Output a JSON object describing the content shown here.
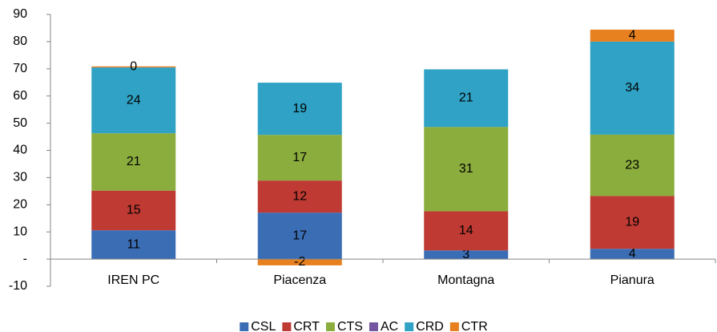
{
  "chart_data": {
    "type": "stacked_bar",
    "categories": [
      "IREN PC",
      "Piacenza",
      "Montagna",
      "Pianura"
    ],
    "series": [
      {
        "name": "CSL",
        "color": "#3b6db5",
        "values": [
          10.6,
          17.1,
          3.2,
          3.8
        ],
        "value_labels": [
          "11",
          "17",
          "3",
          "4"
        ]
      },
      {
        "name": "CRT",
        "color": "#bf3a33",
        "values": [
          14.6,
          11.8,
          14.4,
          19.4
        ],
        "value_labels": [
          "15",
          "12",
          "14",
          "19"
        ]
      },
      {
        "name": "CTS",
        "color": "#8bad3d",
        "values": [
          21.1,
          16.8,
          31.0,
          22.6
        ],
        "value_labels": [
          "21",
          "17",
          "31",
          "23"
        ]
      },
      {
        "name": "AC",
        "color": "#7456a0",
        "values": [
          0,
          0,
          0,
          0
        ],
        "value_labels": [
          null,
          null,
          null,
          null
        ]
      },
      {
        "name": "CRD",
        "color": "#2fa2c5",
        "values": [
          24.2,
          19.2,
          21.2,
          34.2
        ],
        "value_labels": [
          "24",
          "19",
          "21",
          "34"
        ]
      },
      {
        "name": "CTR",
        "color": "#e7801f",
        "values": [
          0.4,
          -2.3,
          0,
          4.4
        ],
        "value_labels": [
          "0",
          "-2",
          null,
          "4"
        ]
      }
    ],
    "ylim": [
      -10,
      90
    ],
    "yticks": [
      -10,
      {
        "value": 0,
        "label": "-"
      },
      10,
      20,
      30,
      40,
      50,
      60,
      70,
      80,
      90
    ],
    "grid": false,
    "legend": "bottom"
  }
}
